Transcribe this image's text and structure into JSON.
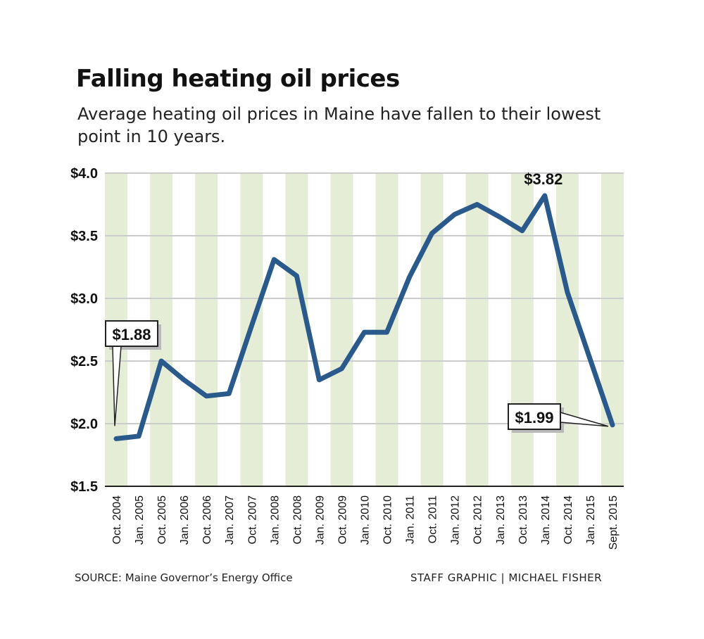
{
  "chart_data": {
    "type": "line",
    "title": "Falling heating oil prices",
    "subtitle": "Average heating oil prices in Maine have fallen to their lowest point in 10 years.",
    "categories": [
      "Oct. 2004",
      "Jan. 2005",
      "Oct. 2005",
      "Jan. 2006",
      "Oct. 2006",
      "Jan. 2007",
      "Oct. 2007",
      "Jan. 2008",
      "Oct. 2008",
      "Jan. 2009",
      "Oct. 2009",
      "Jan. 2010",
      "Oct. 2010",
      "Jan. 2011",
      "Oct. 2011",
      "Jan. 2012",
      "Oct. 2012",
      "Jan. 2013",
      "Oct. 2013",
      "Jan. 2014",
      "Oct. 2014",
      "Jan. 2015",
      "Sept. 2015"
    ],
    "values": [
      1.88,
      1.9,
      2.5,
      2.35,
      2.22,
      2.24,
      2.78,
      3.31,
      3.18,
      2.35,
      2.44,
      2.73,
      2.73,
      3.17,
      3.52,
      3.67,
      3.75,
      3.65,
      3.54,
      3.82,
      3.05,
      2.52,
      1.99
    ],
    "ylim": [
      1.5,
      4.0
    ],
    "yticks": [
      4.0,
      3.5,
      3.0,
      2.5,
      2.0,
      1.5
    ],
    "ytick_labels": [
      "$4.0",
      "$3.5",
      "$3.0",
      "$2.5",
      "$2.0",
      "$1.5"
    ],
    "xlabel": "",
    "ylabel": "",
    "grid": true,
    "annotations": [
      {
        "label": "$1.88",
        "index": 0
      },
      {
        "label": "$3.82",
        "index": 19
      },
      {
        "label": "$1.99",
        "index": 22
      }
    ],
    "colors": {
      "line": "#2a5a8c",
      "band": "#e6edd6",
      "grid": "#cccccc"
    }
  },
  "footer": {
    "source": "SOURCE: Maine Governor’s Energy Office",
    "credit": "STAFF GRAPHIC | MICHAEL FISHER"
  }
}
